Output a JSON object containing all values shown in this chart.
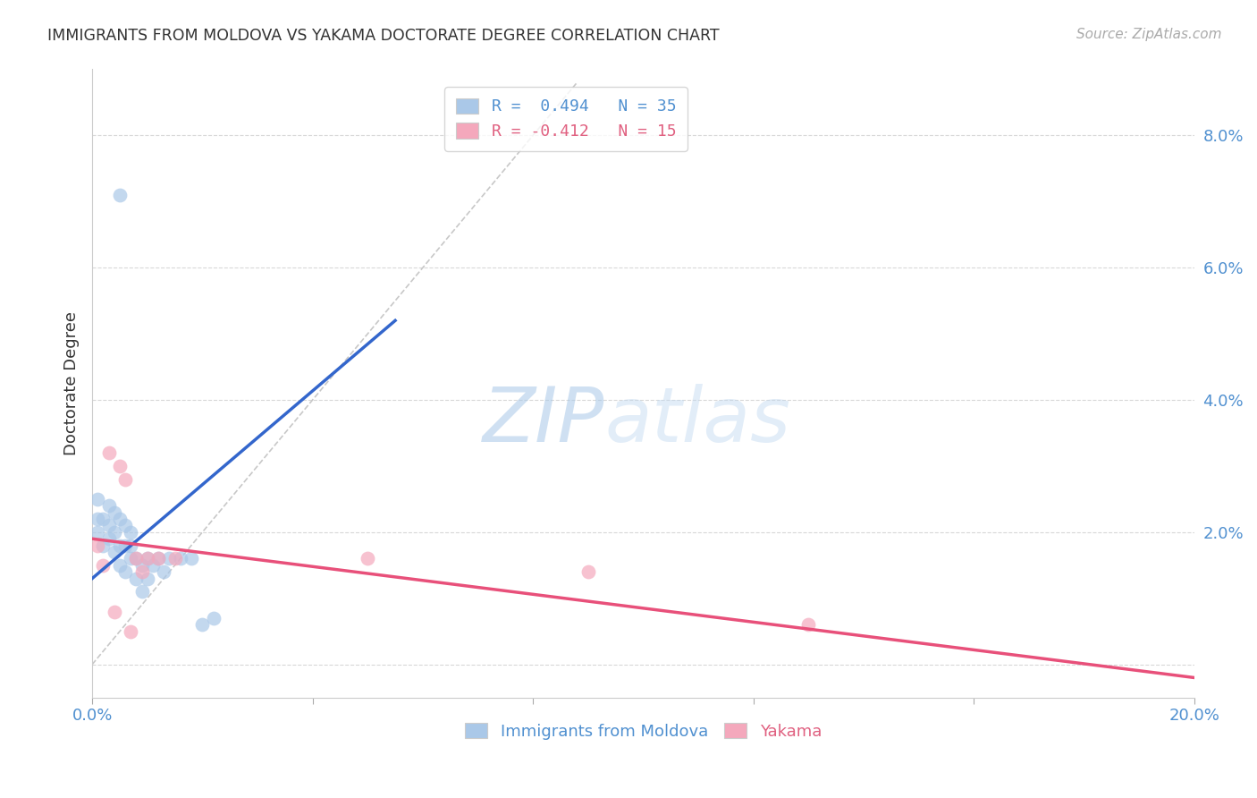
{
  "title": "IMMIGRANTS FROM MOLDOVA VS YAKAMA DOCTORATE DEGREE CORRELATION CHART",
  "source": "Source: ZipAtlas.com",
  "xlabel": "",
  "ylabel": "Doctorate Degree",
  "xlim": [
    0.0,
    0.2
  ],
  "ylim": [
    -0.005,
    0.09
  ],
  "x_ticks": [
    0.0,
    0.04,
    0.08,
    0.12,
    0.16,
    0.2
  ],
  "x_tick_labels": [
    "0.0%",
    "",
    "",
    "",
    "",
    "20.0%"
  ],
  "y_ticks": [
    0.0,
    0.02,
    0.04,
    0.06,
    0.08
  ],
  "y_tick_labels": [
    "",
    "2.0%",
    "4.0%",
    "6.0%",
    "8.0%"
  ],
  "legend_r1": "R =  0.494   N = 35",
  "legend_r2": "R = -0.412   N = 15",
  "blue_color": "#aac8e8",
  "pink_color": "#f4a8bc",
  "blue_line_color": "#3366cc",
  "pink_line_color": "#e8507a",
  "diag_line_color": "#c8c8c8",
  "watermark_zip": "ZIP",
  "watermark_atlas": "atlas",
  "blue_scatter_x": [
    0.001,
    0.001,
    0.001,
    0.002,
    0.002,
    0.003,
    0.003,
    0.003,
    0.004,
    0.004,
    0.004,
    0.005,
    0.005,
    0.005,
    0.006,
    0.006,
    0.006,
    0.007,
    0.007,
    0.007,
    0.008,
    0.008,
    0.009,
    0.009,
    0.01,
    0.01,
    0.011,
    0.012,
    0.013,
    0.014,
    0.016,
    0.018,
    0.02,
    0.022,
    0.005
  ],
  "blue_scatter_y": [
    0.022,
    0.02,
    0.025,
    0.022,
    0.018,
    0.024,
    0.021,
    0.019,
    0.023,
    0.02,
    0.017,
    0.022,
    0.018,
    0.015,
    0.021,
    0.018,
    0.014,
    0.02,
    0.018,
    0.016,
    0.016,
    0.013,
    0.015,
    0.011,
    0.016,
    0.013,
    0.015,
    0.016,
    0.014,
    0.016,
    0.016,
    0.016,
    0.006,
    0.007,
    0.071
  ],
  "pink_scatter_x": [
    0.001,
    0.002,
    0.003,
    0.005,
    0.006,
    0.007,
    0.008,
    0.009,
    0.01,
    0.012,
    0.015,
    0.05,
    0.09,
    0.13,
    0.004
  ],
  "pink_scatter_y": [
    0.018,
    0.015,
    0.032,
    0.03,
    0.028,
    0.005,
    0.016,
    0.014,
    0.016,
    0.016,
    0.016,
    0.016,
    0.014,
    0.006,
    0.008
  ],
  "blue_line_x": [
    0.0,
    0.055
  ],
  "blue_line_y": [
    0.013,
    0.052
  ],
  "pink_line_x": [
    0.0,
    0.2
  ],
  "pink_line_y": [
    0.019,
    -0.002
  ],
  "diag_line_x": [
    0.0,
    0.088
  ],
  "diag_line_y": [
    0.0,
    0.088
  ]
}
